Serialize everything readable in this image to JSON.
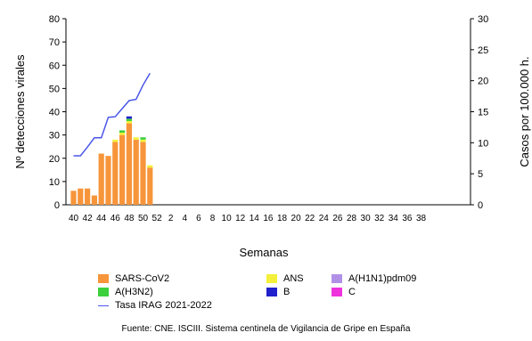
{
  "chart_data": {
    "type": "bar",
    "xlabel": "Semanas",
    "ylabel_left": "Nº detecciones virales",
    "ylabel_right": "Casos por 100.000 h.",
    "ylim_left": [
      0,
      80
    ],
    "ylim_right": [
      0,
      30
    ],
    "yticks_left": [
      "0",
      "10",
      "20",
      "30",
      "40",
      "50",
      "60",
      "70",
      "80"
    ],
    "yticks_right": [
      "0",
      "5",
      "10",
      "15",
      "20",
      "25",
      "30"
    ],
    "weeks": [
      "40",
      "41",
      "42",
      "43",
      "44",
      "45",
      "46",
      "47",
      "48",
      "49",
      "50",
      "51",
      "52",
      "1",
      "2",
      "3",
      "4",
      "5",
      "6",
      "7",
      "8",
      "9",
      "10",
      "11",
      "12",
      "13",
      "14",
      "15",
      "16",
      "17",
      "18",
      "19",
      "20",
      "21",
      "22",
      "23",
      "24",
      "25",
      "26",
      "27",
      "28",
      "29",
      "30",
      "31",
      "32",
      "33",
      "34",
      "35",
      "36",
      "37",
      "38",
      "39"
    ],
    "tick_labels": [
      "40",
      "42",
      "44",
      "46",
      "48",
      "50",
      "52",
      "2",
      "4",
      "6",
      "8",
      "10",
      "12",
      "14",
      "16",
      "18",
      "20",
      "22",
      "24",
      "26",
      "28",
      "30",
      "32",
      "34",
      "36",
      "38"
    ],
    "series": [
      {
        "name": "SARS-CoV2",
        "color": "#f7953a",
        "values": [
          6,
          7,
          7,
          4,
          22,
          21,
          27,
          30,
          35,
          28,
          27,
          16
        ]
      },
      {
        "name": "ANS",
        "color": "#f4f03a",
        "values": [
          0,
          0,
          0,
          0,
          0,
          0,
          1,
          1,
          1,
          1,
          1,
          1
        ]
      },
      {
        "name": "A(H1N1)pdm09",
        "color": "#b191e8",
        "values": [
          0,
          0,
          0,
          0,
          0,
          0,
          0,
          0,
          0,
          0,
          0,
          0
        ]
      },
      {
        "name": "A(H3N2)",
        "color": "#3cd03c",
        "values": [
          0,
          0,
          0,
          0,
          0,
          0,
          0,
          1,
          1,
          0,
          1,
          0
        ]
      },
      {
        "name": "B",
        "color": "#2020cc",
        "values": [
          0,
          0,
          0,
          0,
          0,
          0,
          0,
          0,
          1,
          0,
          0,
          0
        ]
      },
      {
        "name": "C",
        "color": "#ee33dd",
        "values": [
          0,
          0,
          0,
          0,
          0,
          0,
          0,
          0,
          0,
          0,
          0,
          0
        ]
      }
    ],
    "line_series": {
      "name": "Tasa IRAG 2021-2022",
      "color": "#4a56e8",
      "axis": "right",
      "values": [
        7.9,
        7.9,
        9.3,
        10.8,
        10.8,
        14.1,
        14.2,
        15.5,
        16.8,
        17.0,
        19.3,
        21.2
      ]
    },
    "legend_position": "bottom"
  },
  "legend": [
    {
      "label": "SARS-CoV2",
      "color": "#f7953a",
      "kind": "box"
    },
    {
      "label": "ANS",
      "color": "#f4f03a",
      "kind": "box"
    },
    {
      "label": "A(H1N1)pdm09",
      "color": "#b191e8",
      "kind": "box"
    },
    {
      "label": "A(H3N2)",
      "color": "#3cd03c",
      "kind": "box"
    },
    {
      "label": "B",
      "color": "#2020cc",
      "kind": "box"
    },
    {
      "label": "C",
      "color": "#ee33dd",
      "kind": "box"
    },
    {
      "label": "Tasa IRAG 2021-2022",
      "color": "#4a56e8",
      "kind": "line"
    }
  ],
  "source": "Fuente: CNE. ISCIII. Sistema centinela de Vigilancia de Gripe en España"
}
